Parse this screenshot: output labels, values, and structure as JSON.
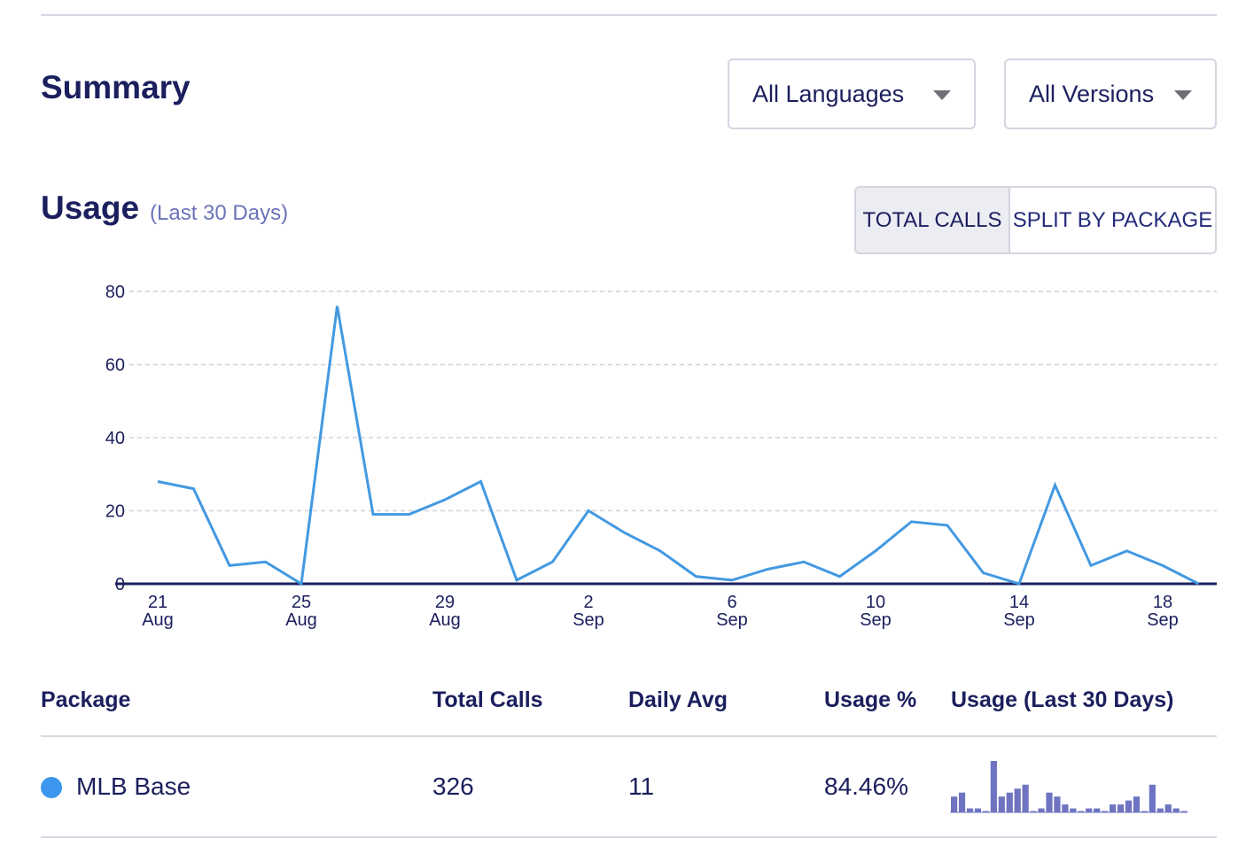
{
  "summary": {
    "title": "Summary",
    "language_dropdown": "All Languages",
    "version_dropdown": "All Versions"
  },
  "usage": {
    "title": "Usage",
    "subtitle": "(Last 30 Days)",
    "toggle_total": "TOTAL CALLS",
    "toggle_split": "SPLIT BY PACKAGE"
  },
  "colors": {
    "line": "#4399e1",
    "axis": "#1b1f5e",
    "grid": "#d0d2de",
    "dot": "#3d97ef",
    "spark": "#6f74c2"
  },
  "chart_data": {
    "type": "line",
    "title": "Usage (Last 30 Days)",
    "xlabel": "",
    "ylabel": "",
    "ylim": [
      0,
      80
    ],
    "yticks": [
      0,
      20,
      40,
      60,
      80
    ],
    "grid": true,
    "x_labels": [
      {
        "index": 0,
        "day": "21",
        "month": "Aug"
      },
      {
        "index": 4,
        "day": "25",
        "month": "Aug"
      },
      {
        "index": 8,
        "day": "29",
        "month": "Aug"
      },
      {
        "index": 12,
        "day": "2",
        "month": "Sep"
      },
      {
        "index": 16,
        "day": "6",
        "month": "Sep"
      },
      {
        "index": 20,
        "day": "10",
        "month": "Sep"
      },
      {
        "index": 24,
        "day": "14",
        "month": "Sep"
      },
      {
        "index": 28,
        "day": "18",
        "month": "Sep"
      }
    ],
    "series": [
      {
        "name": "Total Calls",
        "values": [
          28,
          26,
          5,
          6,
          0,
          76,
          19,
          19,
          23,
          28,
          1,
          6,
          20,
          14,
          9,
          2,
          1,
          4,
          6,
          2,
          9,
          17,
          16,
          3,
          0,
          27,
          5,
          9,
          5,
          0
        ]
      }
    ]
  },
  "table": {
    "headers": {
      "package": "Package",
      "total_calls": "Total Calls",
      "daily_avg": "Daily Avg",
      "usage_pct": "Usage %",
      "usage_30": "Usage (Last 30 Days)"
    },
    "rows": [
      {
        "package": "MLB Base",
        "total_calls": "326",
        "daily_avg": "11",
        "usage_pct": "84.46%",
        "spark_values": [
          4,
          5,
          1,
          1,
          0,
          13,
          4,
          5,
          6,
          7,
          0,
          1,
          5,
          4,
          2,
          1,
          0,
          1,
          1,
          0,
          2,
          2,
          3,
          4,
          0,
          7,
          1,
          2,
          1,
          0
        ]
      }
    ]
  }
}
